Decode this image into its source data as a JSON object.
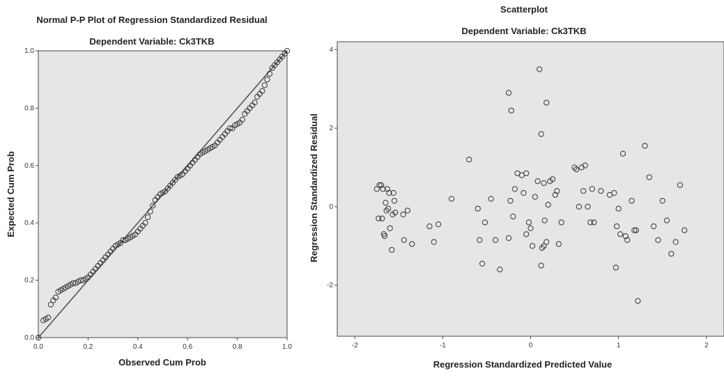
{
  "chart_data": [
    {
      "type": "line",
      "title": "Normal P-P Plot of Regression Standardized Residual",
      "subtitle": "Dependent Variable: Ck3TKB",
      "xlabel": "Observed Cum Prob",
      "ylabel": "Expected Cum Prob",
      "xlim": [
        0,
        1
      ],
      "ylim": [
        0,
        1
      ],
      "xticks": [
        "0.0",
        "0.2",
        "0.4",
        "0.6",
        "0.8",
        "1.0"
      ],
      "yticks": [
        "0.0",
        "0.2",
        "0.4",
        "0.6",
        "0.8",
        "1.0"
      ],
      "grid": false,
      "plot_bg": "#e6e6e6",
      "series": [
        {
          "kind": "line",
          "x": [
            0,
            1
          ],
          "y": [
            0,
            1
          ]
        },
        {
          "kind": "points",
          "marker": "open-circle",
          "x": [
            0.0,
            0.02,
            0.03,
            0.04,
            0.05,
            0.06,
            0.07,
            0.08,
            0.09,
            0.1,
            0.11,
            0.12,
            0.13,
            0.14,
            0.15,
            0.16,
            0.17,
            0.18,
            0.19,
            0.2,
            0.21,
            0.22,
            0.23,
            0.24,
            0.25,
            0.26,
            0.27,
            0.28,
            0.29,
            0.3,
            0.31,
            0.32,
            0.33,
            0.34,
            0.35,
            0.36,
            0.37,
            0.38,
            0.39,
            0.4,
            0.41,
            0.42,
            0.43,
            0.44,
            0.45,
            0.46,
            0.47,
            0.48,
            0.49,
            0.5,
            0.51,
            0.52,
            0.53,
            0.54,
            0.55,
            0.56,
            0.57,
            0.58,
            0.59,
            0.6,
            0.61,
            0.62,
            0.63,
            0.64,
            0.65,
            0.66,
            0.67,
            0.68,
            0.69,
            0.7,
            0.71,
            0.72,
            0.73,
            0.74,
            0.75,
            0.76,
            0.77,
            0.78,
            0.79,
            0.8,
            0.81,
            0.82,
            0.83,
            0.84,
            0.85,
            0.86,
            0.87,
            0.88,
            0.89,
            0.9,
            0.91,
            0.92,
            0.93,
            0.94,
            0.95,
            0.96,
            0.97,
            0.98,
            0.99,
            1.0
          ],
          "y": [
            0.0,
            0.06,
            0.065,
            0.07,
            0.115,
            0.13,
            0.14,
            0.16,
            0.165,
            0.17,
            0.175,
            0.18,
            0.185,
            0.19,
            0.19,
            0.195,
            0.2,
            0.2,
            0.205,
            0.21,
            0.22,
            0.23,
            0.24,
            0.25,
            0.26,
            0.27,
            0.28,
            0.29,
            0.3,
            0.31,
            0.32,
            0.325,
            0.33,
            0.34,
            0.34,
            0.345,
            0.35,
            0.355,
            0.36,
            0.37,
            0.38,
            0.39,
            0.4,
            0.42,
            0.44,
            0.46,
            0.48,
            0.49,
            0.5,
            0.505,
            0.51,
            0.52,
            0.53,
            0.54,
            0.55,
            0.56,
            0.565,
            0.57,
            0.58,
            0.59,
            0.6,
            0.61,
            0.62,
            0.63,
            0.64,
            0.645,
            0.65,
            0.655,
            0.66,
            0.665,
            0.67,
            0.68,
            0.69,
            0.7,
            0.71,
            0.72,
            0.73,
            0.73,
            0.74,
            0.745,
            0.75,
            0.76,
            0.78,
            0.79,
            0.8,
            0.81,
            0.82,
            0.84,
            0.85,
            0.86,
            0.88,
            0.9,
            0.92,
            0.94,
            0.95,
            0.96,
            0.97,
            0.98,
            0.99,
            1.0
          ]
        }
      ]
    },
    {
      "type": "scatter",
      "title": "Scatterplot",
      "subtitle": "Dependent Variable: Ck3TKB",
      "xlabel": "Regression Standardized Predicted Value",
      "ylabel": "Regression Standardized Residual",
      "xlim": [
        -2.2,
        2.2
      ],
      "ylim": [
        -3.3,
        4.2
      ],
      "xticks": [
        -2,
        -1,
        0,
        1,
        2
      ],
      "yticks": [
        -2,
        0,
        2,
        4
      ],
      "grid": false,
      "plot_bg": "#e6e6e6",
      "series": [
        {
          "marker": "open-circle",
          "x": [
            -1.75,
            -1.72,
            -1.7,
            -1.68,
            -1.66,
            -1.65,
            -1.64,
            -1.62,
            -1.6,
            -1.58,
            -1.57,
            -1.56,
            -1.55,
            -1.73,
            -1.69,
            -1.67,
            -1.63,
            -1.61,
            -1.54,
            -1.45,
            -1.4,
            -1.35,
            -1.44,
            -1.15,
            -1.1,
            -1.05,
            -0.9,
            -0.7,
            -0.6,
            -0.55,
            -0.52,
            -0.58,
            -0.45,
            -0.4,
            -0.35,
            -0.25,
            -0.22,
            -0.23,
            -0.2,
            -0.25,
            -0.18,
            -0.15,
            -0.1,
            -0.08,
            -0.05,
            -0.02,
            0.0,
            0.02,
            0.05,
            0.08,
            0.1,
            0.12,
            0.13,
            0.15,
            0.16,
            0.18,
            0.2,
            0.22,
            0.25,
            0.28,
            0.3,
            0.32,
            0.35,
            0.5,
            0.52,
            0.55,
            0.58,
            0.6,
            0.62,
            0.65,
            0.68,
            0.7,
            0.72,
            0.8,
            0.9,
            0.95,
            0.97,
            0.98,
            1.0,
            1.02,
            1.05,
            1.08,
            1.1,
            1.15,
            1.18,
            1.2,
            1.3,
            1.35,
            1.4,
            1.45,
            1.5,
            1.55,
            1.6,
            1.65,
            1.7,
            1.75,
            -0.05,
            0.15,
            1.22,
            0.12,
            0.18
          ],
          "y": [
            0.45,
            0.55,
            0.55,
            0.45,
            -0.75,
            0.1,
            -0.1,
            -0.05,
            -0.55,
            -1.1,
            -0.2,
            0.35,
            0.15,
            -0.3,
            -0.3,
            -0.7,
            0.45,
            0.35,
            -0.15,
            -0.2,
            -0.1,
            -0.95,
            -0.85,
            -0.5,
            -0.9,
            -0.45,
            0.2,
            1.2,
            -0.05,
            -1.45,
            -0.4,
            -0.85,
            0.2,
            -0.85,
            -1.6,
            2.9,
            2.45,
            0.15,
            -0.25,
            -0.8,
            0.45,
            0.85,
            0.8,
            0.35,
            0.85,
            -0.4,
            -0.55,
            -1.0,
            0.25,
            0.65,
            3.5,
            1.85,
            -1.05,
            0.6,
            -0.35,
            2.65,
            0.05,
            0.65,
            0.7,
            0.3,
            0.4,
            -0.95,
            -0.4,
            1.0,
            0.95,
            0.0,
            1.0,
            0.4,
            1.05,
            0.0,
            -0.4,
            0.45,
            -0.4,
            0.4,
            0.3,
            0.35,
            -1.55,
            -0.5,
            -0.05,
            -0.7,
            1.35,
            -0.75,
            -0.85,
            0.15,
            -0.6,
            -0.6,
            1.55,
            0.75,
            -0.5,
            -0.85,
            0.15,
            -0.35,
            -1.2,
            -0.9,
            0.55,
            -0.6,
            -0.7,
            -1.0,
            -2.4,
            -1.5,
            -0.9
          ]
        }
      ]
    }
  ]
}
